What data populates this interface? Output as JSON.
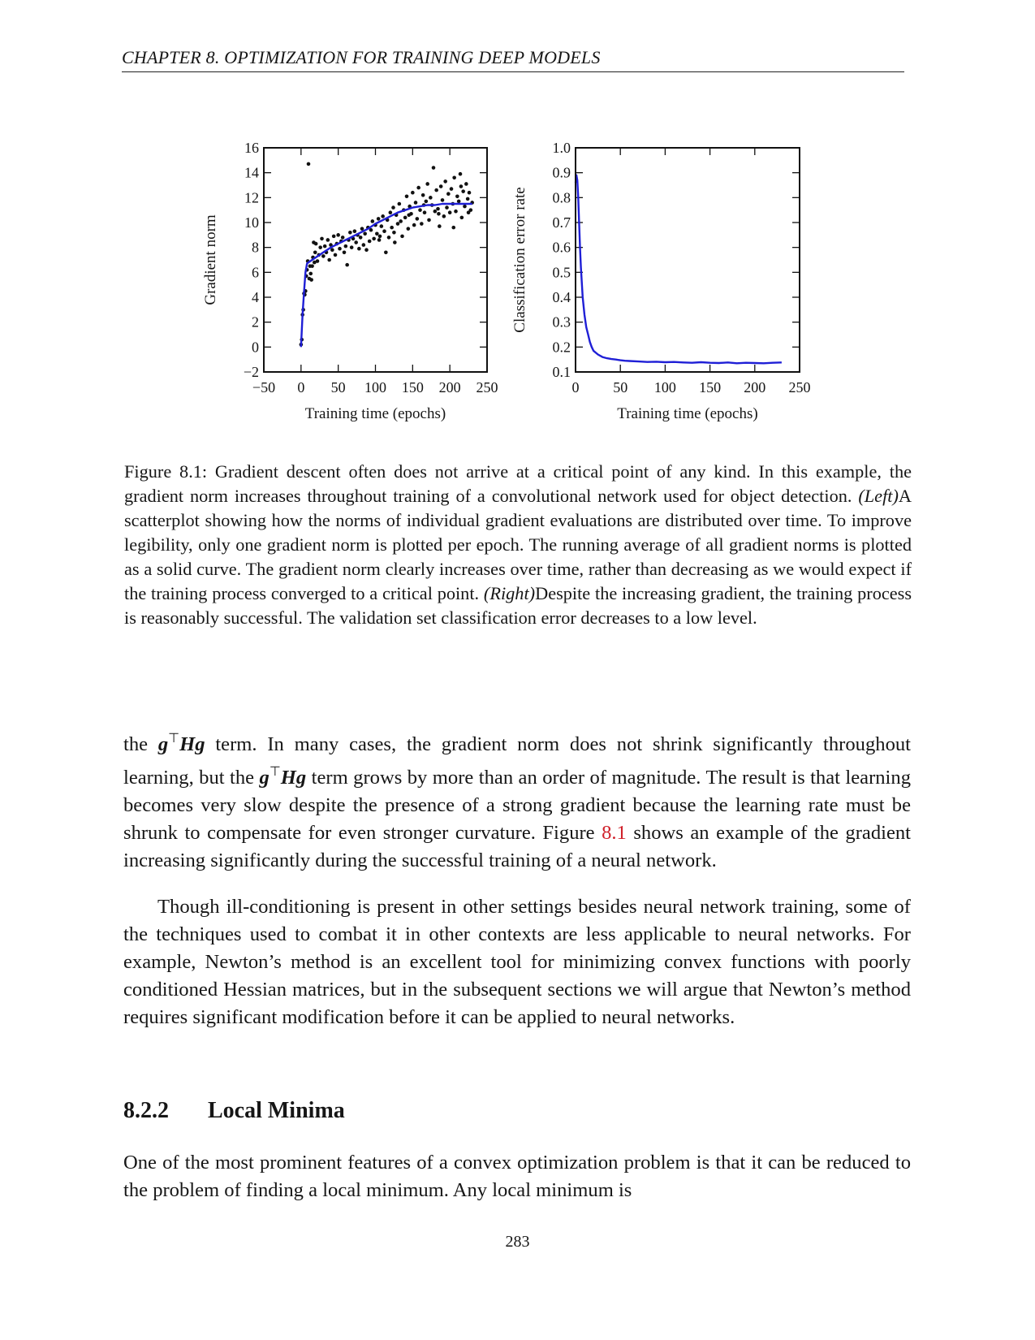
{
  "running_head": "CHAPTER 8.   OPTIMIZATION FOR TRAINING DEEP MODELS",
  "chart_data": [
    {
      "type": "scatter",
      "ylabel": "Gradient norm",
      "xlabel": "Training time (epochs)",
      "xlim": [
        -50,
        250
      ],
      "ylim": [
        -2,
        16
      ],
      "xticks": [
        -50,
        0,
        50,
        100,
        150,
        200,
        250
      ],
      "yticks": [
        -2,
        0,
        2,
        4,
        6,
        8,
        10,
        12,
        14,
        16
      ],
      "xtick_labels": [
        "−50",
        "0",
        "50",
        "100",
        "150",
        "200",
        "250"
      ],
      "ytick_labels": [
        "−2",
        "0",
        "2",
        "4",
        "6",
        "8",
        "10",
        "12",
        "14",
        "16"
      ],
      "colors": {
        "points": "#111111",
        "curve": "#1f1fd6"
      },
      "points": [
        [
          0,
          0.2
        ],
        [
          1,
          0.6
        ],
        [
          2,
          2.6
        ],
        [
          3,
          3.0
        ],
        [
          4,
          4.3
        ],
        [
          5,
          4.2
        ],
        [
          6,
          4.5
        ],
        [
          7,
          5.7
        ],
        [
          8,
          6.2
        ],
        [
          9,
          6.9
        ],
        [
          10,
          14.7
        ],
        [
          11,
          5.5
        ],
        [
          12,
          6.5
        ],
        [
          13,
          5.9
        ],
        [
          14,
          5.4
        ],
        [
          15,
          6.5
        ],
        [
          16,
          7.2
        ],
        [
          17,
          8.4
        ],
        [
          18,
          6.8
        ],
        [
          19,
          7.6
        ],
        [
          20,
          8.3
        ],
        [
          22,
          6.9
        ],
        [
          24,
          7.4
        ],
        [
          26,
          8.0
        ],
        [
          28,
          8.7
        ],
        [
          30,
          7.3
        ],
        [
          32,
          8.1
        ],
        [
          34,
          7.6
        ],
        [
          36,
          8.6
        ],
        [
          38,
          7.0
        ],
        [
          40,
          8.2
        ],
        [
          42,
          7.8
        ],
        [
          44,
          8.9
        ],
        [
          46,
          7.4
        ],
        [
          48,
          8.3
        ],
        [
          50,
          9.0
        ],
        [
          52,
          7.9
        ],
        [
          54,
          8.5
        ],
        [
          56,
          8.8
        ],
        [
          58,
          7.6
        ],
        [
          60,
          8.1
        ],
        [
          62,
          6.6
        ],
        [
          64,
          8.6
        ],
        [
          66,
          9.2
        ],
        [
          68,
          8.0
        ],
        [
          70,
          8.7
        ],
        [
          72,
          9.3
        ],
        [
          74,
          8.4
        ],
        [
          76,
          9.0
        ],
        [
          78,
          7.9
        ],
        [
          80,
          8.8
        ],
        [
          82,
          9.5
        ],
        [
          84,
          8.2
        ],
        [
          86,
          9.1
        ],
        [
          88,
          7.8
        ],
        [
          90,
          9.6
        ],
        [
          92,
          8.5
        ],
        [
          94,
          9.4
        ],
        [
          96,
          10.1
        ],
        [
          98,
          8.7
        ],
        [
          100,
          9.8
        ],
        [
          102,
          9.1
        ],
        [
          104,
          10.3
        ],
        [
          106,
          8.9
        ],
        [
          108,
          9.7
        ],
        [
          110,
          10.5
        ],
        [
          112,
          9.3
        ],
        [
          114,
          7.6
        ],
        [
          116,
          10.2
        ],
        [
          118,
          8.8
        ],
        [
          120,
          10.8
        ],
        [
          122,
          9.6
        ],
        [
          124,
          11.2
        ],
        [
          126,
          8.4
        ],
        [
          128,
          10.6
        ],
        [
          130,
          9.9
        ],
        [
          132,
          11.5
        ],
        [
          134,
          10.1
        ],
        [
          136,
          8.9
        ],
        [
          138,
          11.0
        ],
        [
          140,
          10.4
        ],
        [
          142,
          12.1
        ],
        [
          144,
          9.5
        ],
        [
          146,
          11.3
        ],
        [
          148,
          10.7
        ],
        [
          150,
          12.4
        ],
        [
          152,
          9.8
        ],
        [
          154,
          11.6
        ],
        [
          156,
          10.3
        ],
        [
          158,
          12.8
        ],
        [
          160,
          11.0
        ],
        [
          162,
          9.9
        ],
        [
          164,
          12.2
        ],
        [
          166,
          10.8
        ],
        [
          168,
          11.7
        ],
        [
          170,
          13.1
        ],
        [
          172,
          10.2
        ],
        [
          174,
          12.0
        ],
        [
          176,
          11.4
        ],
        [
          178,
          14.4
        ],
        [
          180,
          10.9
        ],
        [
          182,
          12.6
        ],
        [
          184,
          11.1
        ],
        [
          186,
          9.7
        ],
        [
          188,
          12.9
        ],
        [
          190,
          11.8
        ],
        [
          192,
          10.5
        ],
        [
          194,
          13.3
        ],
        [
          196,
          11.2
        ],
        [
          198,
          12.3
        ],
        [
          200,
          10.8
        ],
        [
          202,
          12.7
        ],
        [
          204,
          11.5
        ],
        [
          206,
          13.6
        ],
        [
          208,
          10.9
        ],
        [
          210,
          12.1
        ],
        [
          212,
          11.7
        ],
        [
          214,
          13.9
        ],
        [
          216,
          10.4
        ],
        [
          218,
          12.5
        ],
        [
          220,
          11.3
        ],
        [
          222,
          13.1
        ],
        [
          224,
          11.9
        ],
        [
          226,
          12.4
        ],
        [
          228,
          11.0
        ],
        [
          230,
          11.6
        ],
        [
          105,
          8.6
        ],
        [
          125,
          9.2
        ],
        [
          145,
          10.6
        ],
        [
          165,
          11.4
        ],
        [
          185,
          10.7
        ],
        [
          205,
          9.6
        ],
        [
          215,
          12.9
        ],
        [
          225,
          10.8
        ]
      ],
      "series": [
        {
          "x": [
            0,
            2,
            4,
            6,
            8,
            10,
            15,
            20,
            30,
            40,
            50,
            60,
            70,
            80,
            90,
            100,
            110,
            120,
            130,
            140,
            150,
            160,
            170,
            180,
            190,
            200,
            210,
            220,
            230
          ],
          "y": [
            0,
            2.6,
            4.4,
            6.0,
            6.7,
            6.8,
            7.0,
            7.2,
            7.6,
            8.0,
            8.3,
            8.6,
            8.9,
            9.2,
            9.5,
            9.9,
            10.2,
            10.5,
            10.8,
            11.0,
            11.2,
            11.3,
            11.4,
            11.4,
            11.5,
            11.5,
            11.5,
            11.5,
            11.5
          ]
        }
      ]
    },
    {
      "type": "line",
      "ylabel": "Classification error rate",
      "xlabel": "Training time (epochs)",
      "xlim": [
        0,
        250
      ],
      "ylim": [
        0.1,
        1.0
      ],
      "xticks": [
        0,
        50,
        100,
        150,
        200,
        250
      ],
      "yticks": [
        0.1,
        0.2,
        0.3,
        0.4,
        0.5,
        0.6,
        0.7,
        0.8,
        0.9,
        1.0
      ],
      "xtick_labels": [
        "0",
        "50",
        "100",
        "150",
        "200",
        "250"
      ],
      "ytick_labels": [
        "0.1",
        "0.2",
        "0.3",
        "0.4",
        "0.5",
        "0.6",
        "0.7",
        "0.8",
        "0.9",
        "1.0"
      ],
      "colors": {
        "curve": "#1f1fd6"
      },
      "series": [
        {
          "x": [
            0,
            1,
            2,
            3,
            4,
            5,
            6,
            7,
            8,
            10,
            12,
            14,
            16,
            18,
            20,
            25,
            30,
            35,
            40,
            45,
            50,
            55,
            60,
            70,
            80,
            90,
            100,
            110,
            120,
            130,
            140,
            150,
            160,
            170,
            180,
            190,
            200,
            210,
            220,
            230
          ],
          "y": [
            0.86,
            0.89,
            0.87,
            0.8,
            0.7,
            0.6,
            0.52,
            0.46,
            0.4,
            0.33,
            0.28,
            0.25,
            0.22,
            0.2,
            0.185,
            0.17,
            0.16,
            0.155,
            0.152,
            0.15,
            0.147,
            0.145,
            0.144,
            0.142,
            0.14,
            0.141,
            0.139,
            0.14,
            0.138,
            0.137,
            0.139,
            0.137,
            0.136,
            0.138,
            0.135,
            0.137,
            0.136,
            0.135,
            0.137,
            0.138
          ]
        }
      ]
    }
  ],
  "caption": {
    "part1": "Figure 8.1: Gradient descent often does not arrive at a critical point of any kind. In this example, the gradient norm increases throughout training of a convolutional network used for object detection. ",
    "left": "(Left)",
    "part2": "A scatterplot showing how the norms of individual gradient evaluations are distributed over time. To improve legibility, only one gradient norm is plotted per epoch. The running average of all gradient norms is plotted as a solid curve. The gradient norm clearly increases over time, rather than decreasing as we would expect if the training process converged to a critical point. ",
    "right": "(Right)",
    "part3": "Despite the increasing gradient, the training process is reasonably successful. The validation set classification error decreases to a low level."
  },
  "para1": {
    "t1": "the ",
    "t2": " term. In many cases, the gradient norm does not shrink significantly throughout learning, but the ",
    "t3": " term grows by more than an order of magnitude. The result is that learning becomes very slow despite the presence of a strong gradient because the learning rate must be shrunk to compensate for even stronger curvature. Figure ",
    "ref": "8.1",
    "t4": " shows an example of the gradient increasing significantly during the successful training of a neural network."
  },
  "math": {
    "g": "g",
    "top": "⊤",
    "Hg": "Hg"
  },
  "para2": "Though ill-conditioning is present in other settings besides neural network training, some of the techniques used to combat it in other contexts are less applicable to neural networks. For example, Newton’s method is an excellent tool for minimizing convex functions with poorly conditioned Hessian matrices, but in the subsequent sections we will argue that Newton’s method requires significant modification before it can be applied to neural networks.",
  "section": {
    "number": "8.2.2",
    "title": "Local Minima"
  },
  "para3": "One of the most prominent features of a convex optimization problem is that it can be reduced to the problem of finding a local minimum. Any local minimum is",
  "page_number": "283"
}
